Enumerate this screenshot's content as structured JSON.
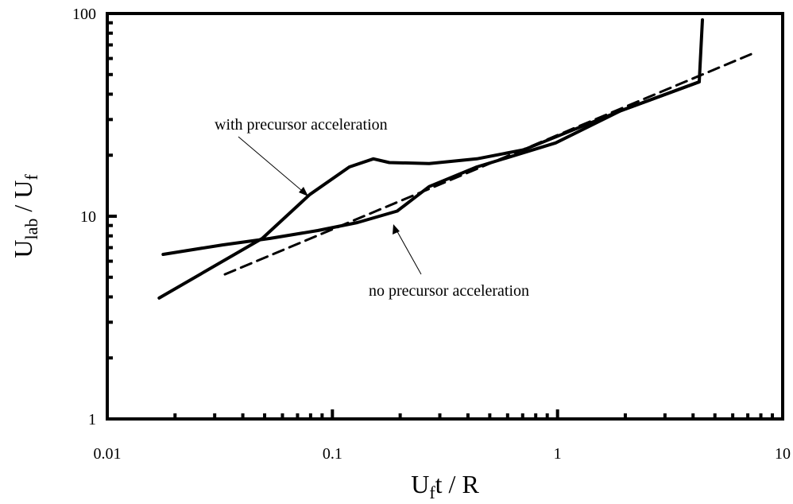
{
  "chart_data": {
    "type": "line",
    "xlabel": [
      {
        "text": "U"
      },
      {
        "text": "f",
        "sub": true
      },
      {
        "text": "t / R"
      }
    ],
    "ylabel": [
      {
        "text": "U"
      },
      {
        "text": "lab",
        "sub": true
      },
      {
        "text": " / U"
      },
      {
        "text": "f",
        "sub": true
      }
    ],
    "xlog": true,
    "ylog": true,
    "xlim": [
      0.01,
      10
    ],
    "ylim": [
      1,
      100
    ],
    "xticks": [
      0.01,
      0.1,
      1,
      10
    ],
    "yticks": [
      1,
      10,
      100
    ],
    "xticks_minor": [
      0.02,
      0.03,
      0.04,
      0.05,
      0.06,
      0.07,
      0.08,
      0.09,
      0.2,
      0.3,
      0.4,
      0.5,
      0.6,
      0.7,
      0.8,
      0.9,
      2,
      3,
      4,
      5,
      6,
      7,
      8,
      9
    ],
    "yticks_minor": [
      2,
      3,
      4,
      5,
      6,
      7,
      8,
      9,
      20,
      30,
      40,
      50,
      60,
      70,
      80,
      90
    ],
    "series": [
      {
        "name": "with precursor acceleration",
        "color": "#000000",
        "dash": false,
        "x": [
          0.017,
          0.0488,
          0.0794,
          0.119,
          0.152,
          0.179,
          0.269,
          0.438,
          0.71,
          1.89,
          4.26
        ],
        "values": [
          3.95,
          7.77,
          12.8,
          17.5,
          19.2,
          18.4,
          18.2,
          19.2,
          21.3,
          33,
          46
        ]
      },
      {
        "name": "no precursor acceleration",
        "color": "#000000",
        "dash": false,
        "x": [
          0.0177,
          0.0325,
          0.0529,
          0.0861,
          0.129,
          0.194,
          0.269,
          0.438,
          0.98,
          1.89,
          4.26,
          4.4
        ],
        "values": [
          6.48,
          7.22,
          7.77,
          8.5,
          9.3,
          10.6,
          14.0,
          17.5,
          23,
          33,
          46,
          93
        ]
      },
      {
        "color": "#000000",
        "dash": true,
        "x": [
          0.0333,
          7.23
        ],
        "values": [
          5.17,
          63
        ]
      }
    ]
  }
}
